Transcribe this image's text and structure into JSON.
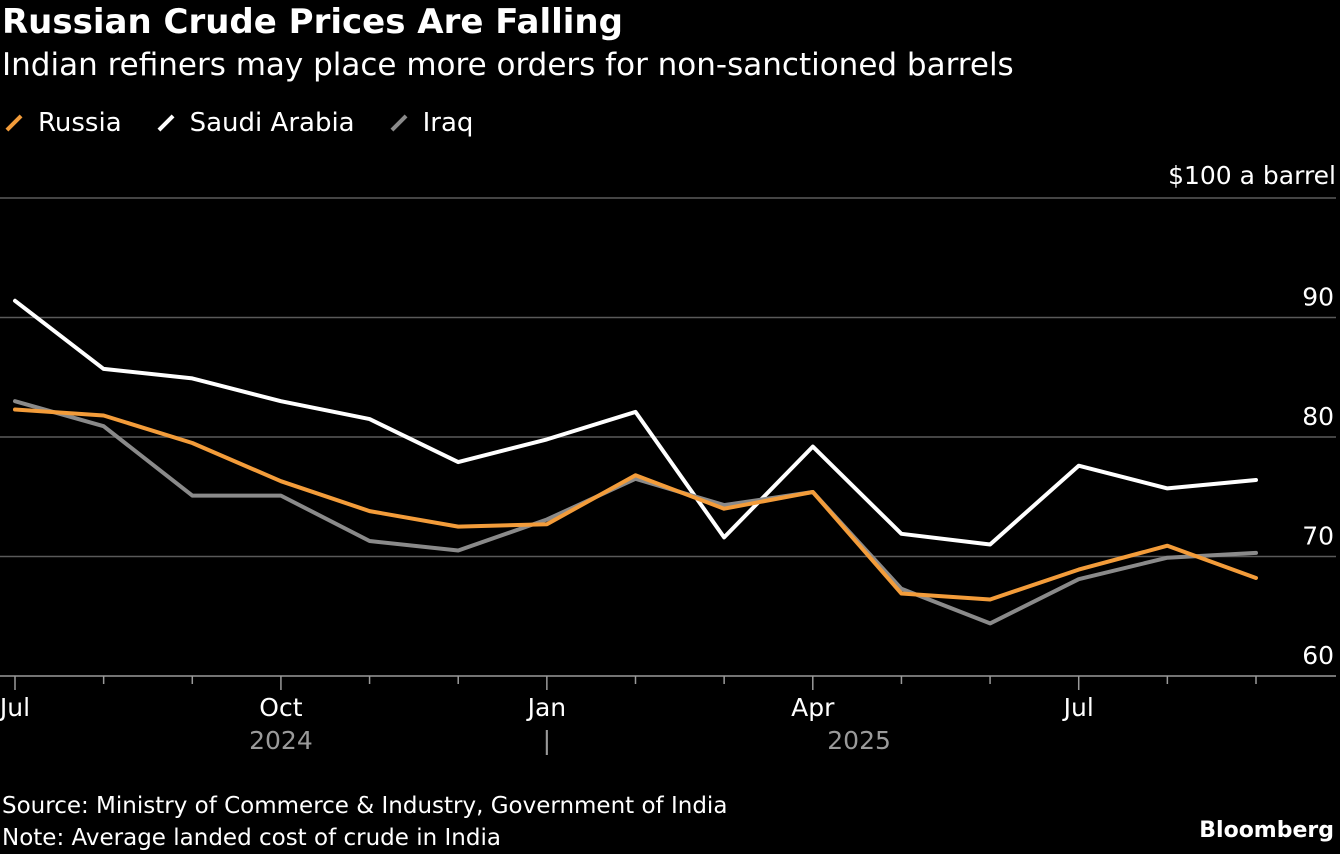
{
  "chart_data": {
    "type": "line",
    "title": "Russian Crude Prices Are Falling",
    "subtitle": "Indian refiners may place more orders for non-sanctioned barrels",
    "unit_label": "$100 a barrel",
    "ylim": [
      60,
      100
    ],
    "yticks": [
      60,
      70,
      80,
      90
    ],
    "x": [
      "2024-07",
      "2024-08",
      "2024-09",
      "2024-10",
      "2024-11",
      "2024-12",
      "2025-01",
      "2025-02",
      "2025-03",
      "2025-04",
      "2025-05",
      "2025-06",
      "2025-07",
      "2025-08",
      "2025-09"
    ],
    "month_labels": [
      {
        "index": 0,
        "label": "Jul"
      },
      {
        "index": 3,
        "label": "Oct"
      },
      {
        "index": 6,
        "label": "Jan"
      },
      {
        "index": 9,
        "label": "Apr"
      },
      {
        "index": 12,
        "label": "Jul"
      }
    ],
    "year_labels": [
      "2024",
      "2025"
    ],
    "year_divider": "|",
    "series": [
      {
        "name": "Saudi Arabia",
        "color": "#ffffff",
        "values": [
          91.4,
          85.7,
          84.9,
          83.0,
          81.5,
          77.9,
          79.8,
          82.1,
          71.6,
          79.2,
          71.9,
          71.0,
          77.6,
          75.7,
          76.4
        ]
      },
      {
        "name": "Iraq",
        "color": "#8a8a8a",
        "values": [
          83.0,
          80.9,
          75.1,
          75.1,
          71.3,
          70.5,
          73.1,
          76.5,
          74.3,
          75.4,
          67.3,
          64.4,
          68.1,
          69.9,
          70.3
        ]
      },
      {
        "name": "Russia",
        "color": "#f39c3a",
        "values": [
          82.3,
          81.8,
          79.5,
          76.3,
          73.8,
          72.5,
          72.7,
          76.8,
          74.0,
          75.4,
          66.9,
          66.4,
          68.9,
          70.9,
          68.2
        ]
      }
    ],
    "legend_order": [
      "Russia",
      "Saudi Arabia",
      "Iraq"
    ],
    "legend_position": "top-left"
  },
  "footer": {
    "source": "Source: Ministry of Commerce & Industry, Government of India",
    "note": "Note: Average landed cost of crude in India",
    "brand": "Bloomberg"
  },
  "colors": {
    "background": "#000000",
    "gridline": "#5a5a5a",
    "russia": "#f39c3a",
    "saudi": "#ffffff",
    "iraq": "#8a8a8a"
  }
}
